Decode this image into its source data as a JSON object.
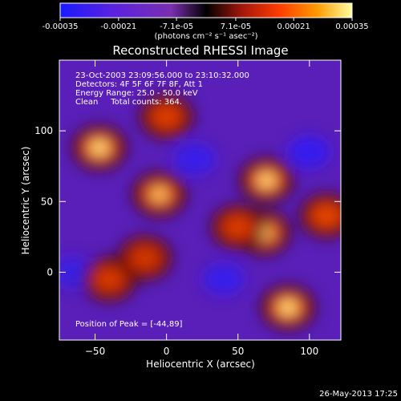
{
  "colorbar": {
    "tick_labels": [
      "-0.00035",
      "-0.00021",
      "-7.1e-05",
      "7.1e-05",
      "0.00021",
      "0.00035"
    ],
    "tick_values": [
      -0.00035,
      -0.00021,
      -7.1e-05,
      7.1e-05,
      0.00021,
      0.00035
    ],
    "range": [
      -0.00035,
      0.00035
    ],
    "unit_label": "(photons cm⁻² s⁻¹ asec⁻²)",
    "colors": [
      "#1a1aff",
      "#6a1fd8",
      "#7a2fb0",
      "#000000",
      "#a0160c",
      "#ff3b00",
      "#ff9a00",
      "#ffff80"
    ]
  },
  "chart_data": {
    "type": "heatmap",
    "title": "Reconstructed RHESSI Image",
    "xlabel": "Heliocentric X (arcsec)",
    "ylabel": "Heliocentric Y (arcsec)",
    "xlim": [
      -75,
      122
    ],
    "ylim": [
      -48,
      150
    ],
    "x_ticks": [
      -50,
      0,
      50,
      100
    ],
    "y_ticks": [
      0,
      50,
      100
    ],
    "x_tick_labels": [
      "−50",
      "0",
      "50",
      "100"
    ],
    "y_tick_labels": [
      "0",
      "50",
      "100"
    ],
    "info_lines": [
      "23-Oct-2003 23:09:56.000 to 23:10:32.000",
      "Detectors: 4F 5F 6F 7F 8F, Att 1",
      "Energy Range: 25.0 - 50.0 keV",
      "Clean     Total counts: 364."
    ],
    "peak_label": "Position of Peak = [-44,89]",
    "bright_sources": [
      {
        "x": -47,
        "y": 88,
        "intensity": 1.0
      },
      {
        "x": 0,
        "y": 110,
        "intensity": 0.6
      },
      {
        "x": -5,
        "y": 55,
        "intensity": 0.8
      },
      {
        "x": 70,
        "y": 65,
        "intensity": 0.95
      },
      {
        "x": 68,
        "y": 28,
        "intensity": 0.9
      },
      {
        "x": 85,
        "y": -25,
        "intensity": 1.0
      },
      {
        "x": 112,
        "y": 40,
        "intensity": 0.7
      },
      {
        "x": 50,
        "y": 32,
        "intensity": 0.55
      },
      {
        "x": -40,
        "y": -5,
        "intensity": 0.5
      },
      {
        "x": -15,
        "y": 10,
        "intensity": 0.45
      }
    ],
    "dark_sources": [
      {
        "x": 20,
        "y": 80,
        "intensity": 0.7
      },
      {
        "x": 100,
        "y": 85,
        "intensity": 0.8
      },
      {
        "x": -65,
        "y": 0,
        "intensity": 0.6
      },
      {
        "x": 40,
        "y": -5,
        "intensity": 0.7
      }
    ]
  },
  "footer": {
    "timestamp": "26-May-2013 17:25"
  }
}
